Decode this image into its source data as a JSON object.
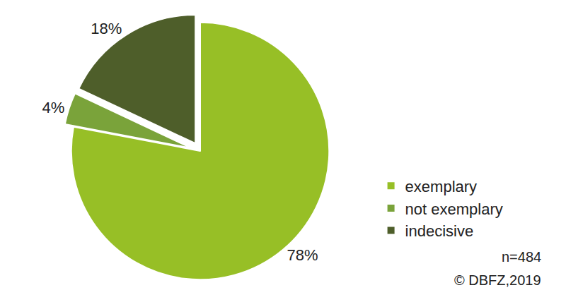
{
  "chart_data": {
    "type": "pie",
    "categories": [
      "exemplary",
      "not exemplary",
      "indecisive"
    ],
    "values": [
      78,
      4,
      18
    ],
    "value_labels": [
      "78%",
      "4%",
      "18%"
    ],
    "colors": [
      "#97bf26",
      "#7aa33a",
      "#4e5e2a"
    ],
    "data_labels": true,
    "legend": "right",
    "annotations": [
      "n=484",
      "© DBFZ,2019"
    ]
  }
}
